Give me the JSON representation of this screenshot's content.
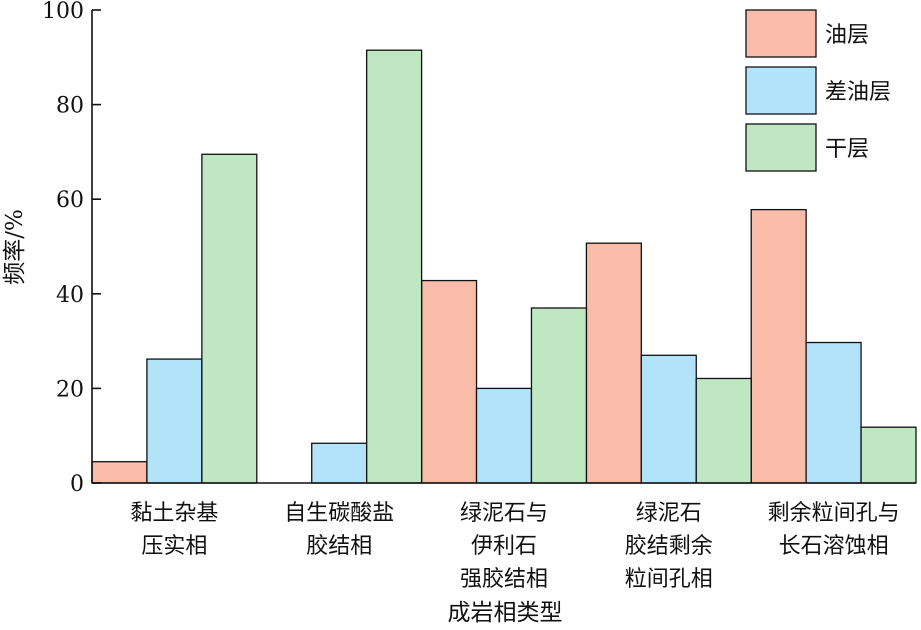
{
  "chart_data": {
    "type": "bar",
    "title": "",
    "xlabel": "成岩相类型",
    "ylabel": "频率/%",
    "ylim": [
      0,
      100
    ],
    "yticks": [
      0,
      20,
      40,
      60,
      80,
      100
    ],
    "grid": false,
    "legend_position": "top-right",
    "categories": [
      [
        "黏土杂基",
        "压实相"
      ],
      [
        "自生碳酸盐",
        "胶结相"
      ],
      [
        "绿泥石与",
        "伊利石",
        "强胶结相"
      ],
      [
        "绿泥石",
        "胶结剩余",
        "粒间孔相"
      ],
      [
        "剩余粒间孔与",
        "长石溶蚀相"
      ]
    ],
    "series": [
      {
        "name": "油层",
        "color": "#f9bca8",
        "values": [
          4.5,
          0,
          42.8,
          50.7,
          57.8
        ]
      },
      {
        "name": "差油层",
        "color": "#b2e3f8",
        "values": [
          26.2,
          8.4,
          20.0,
          27.0,
          29.7
        ]
      },
      {
        "name": "干层",
        "color": "#bfe7c2",
        "values": [
          69.5,
          91.5,
          37.0,
          22.1,
          11.8
        ]
      }
    ]
  }
}
